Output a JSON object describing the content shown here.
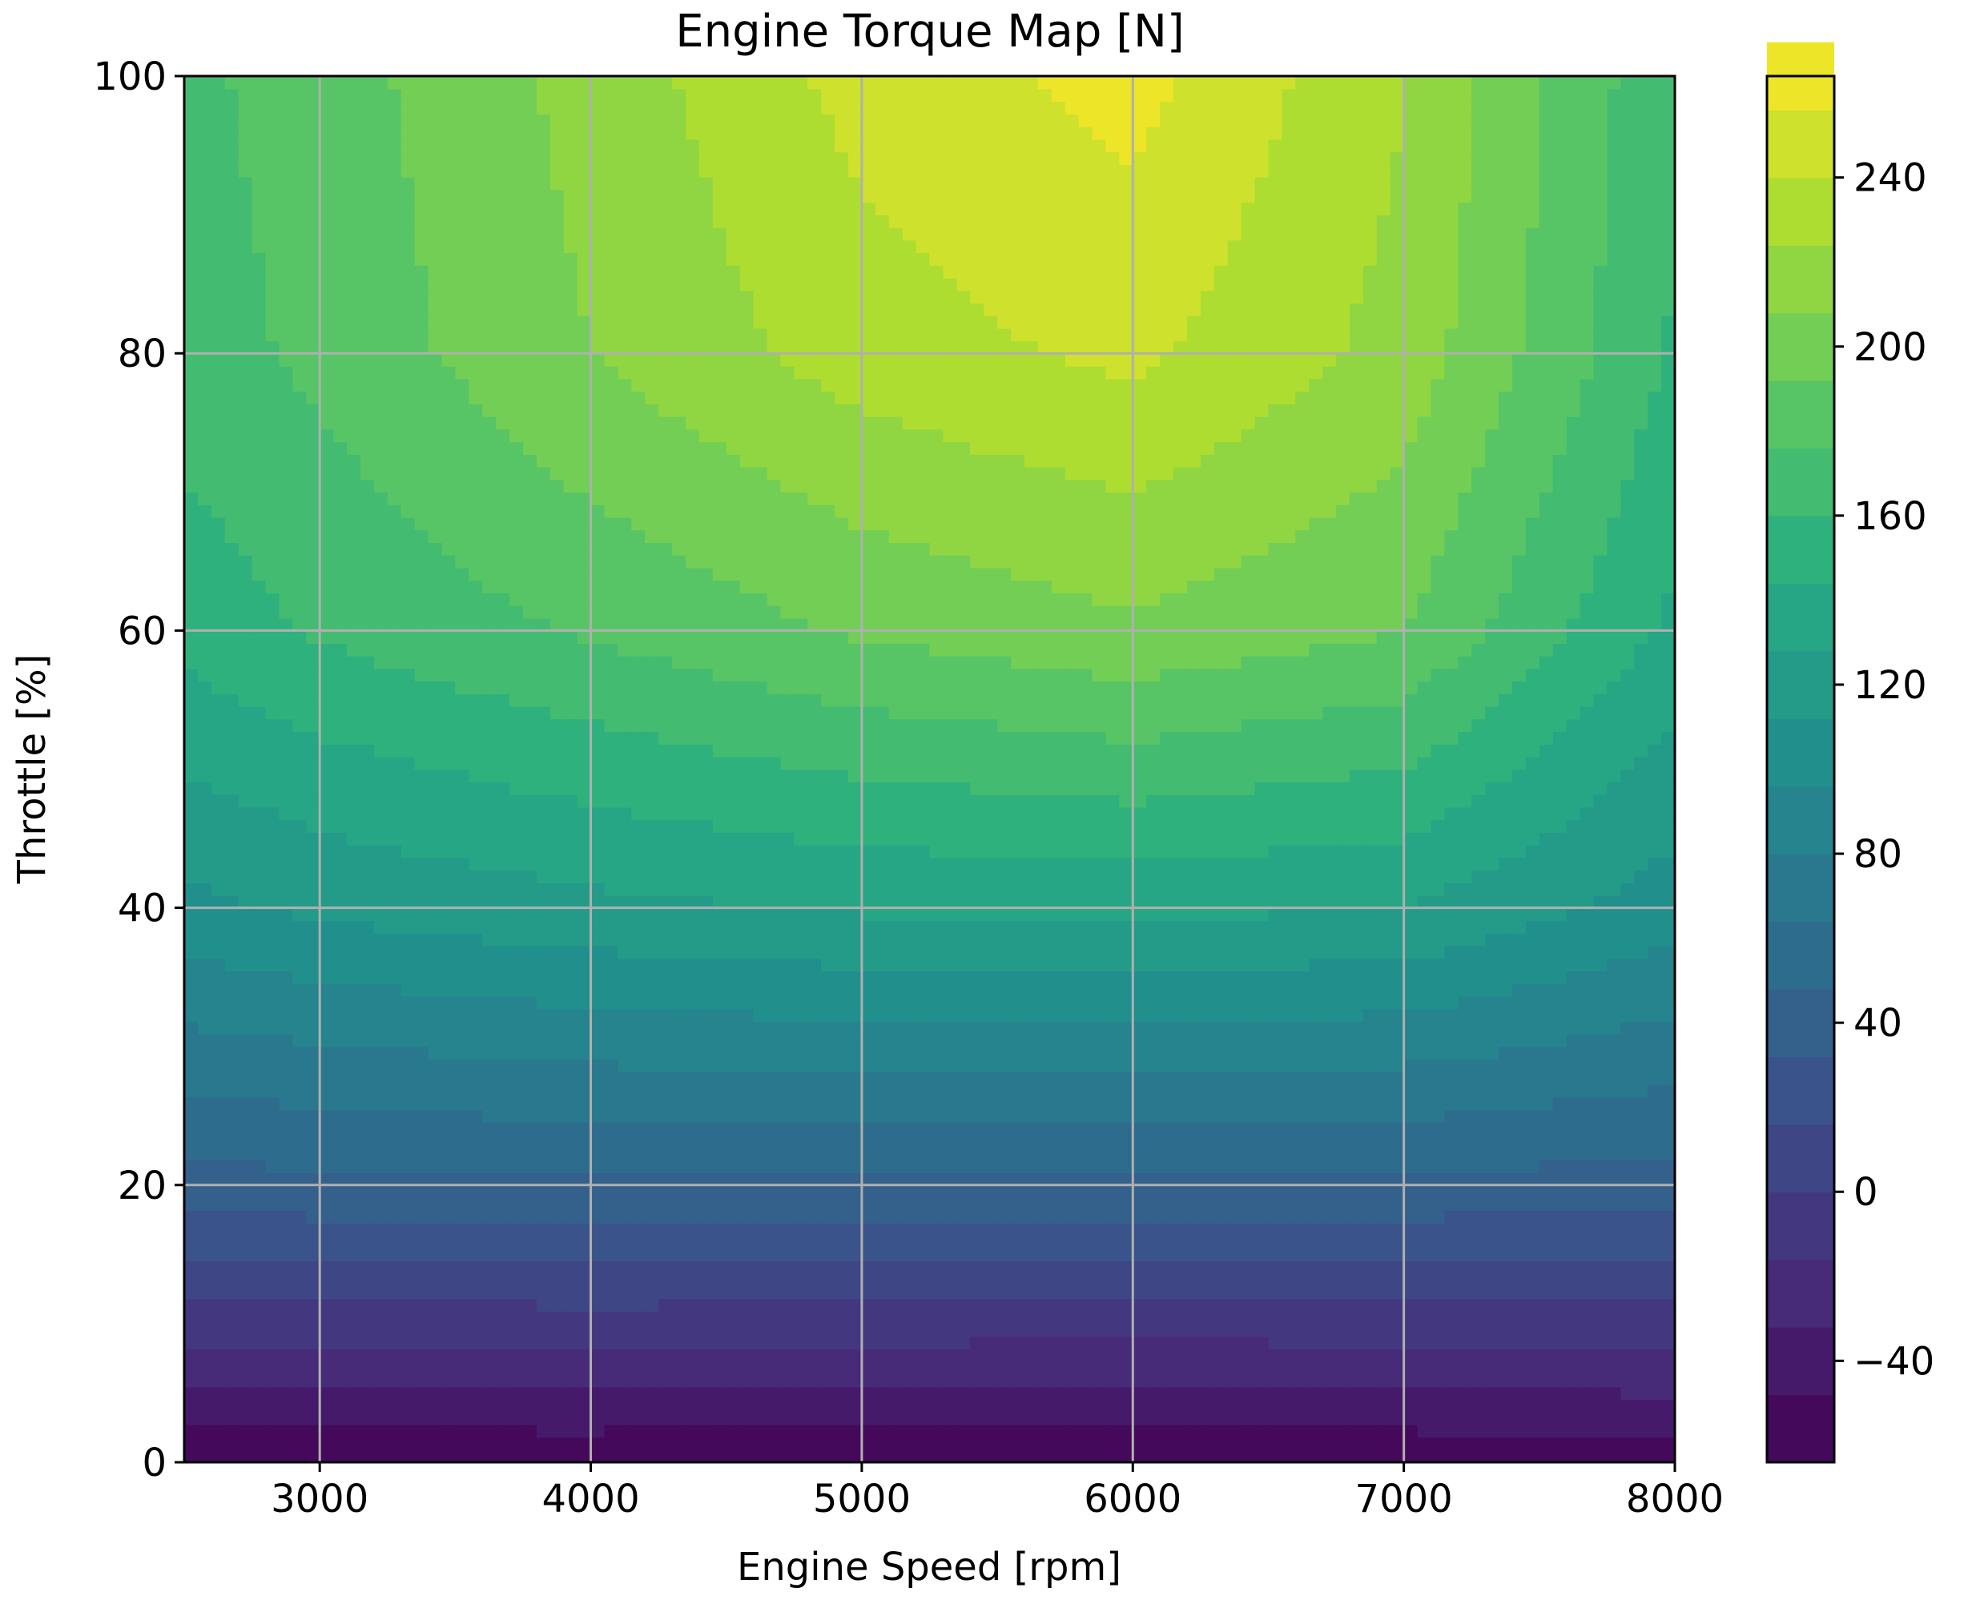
{
  "chart_data": {
    "type": "heatmap",
    "subtype": "filled-contour",
    "title": "Engine Torque Map [N]",
    "xlabel": "Engine Speed [rpm]",
    "ylabel": "Throttle [%]",
    "xlim": [
      2500,
      8000
    ],
    "ylim": [
      0,
      100
    ],
    "xticks": [
      3000,
      4000,
      5000,
      6000,
      7000,
      8000
    ],
    "xtick_labels": [
      "3000",
      "4000",
      "5000",
      "6000",
      "7000",
      "8000"
    ],
    "yticks": [
      0,
      20,
      40,
      60,
      80,
      100
    ],
    "ytick_labels": [
      "0",
      "20",
      "40",
      "60",
      "80",
      "100"
    ],
    "grid": true,
    "colormap": "viridis",
    "colorbar": {
      "range": [
        -64,
        264
      ],
      "ticks": [
        -40,
        0,
        40,
        80,
        120,
        160,
        200,
        240
      ],
      "tick_labels": [
        "−40",
        "0",
        "40",
        "80",
        "120",
        "160",
        "200",
        "240"
      ],
      "band_step": 16
    },
    "peak": {
      "x": 5900,
      "y": 100,
      "value": 262
    },
    "grid_values": {
      "x": [
        2500,
        3000,
        4000,
        5000,
        6000,
        7000,
        8000
      ],
      "y": [
        0,
        20,
        40,
        60,
        80,
        100
      ],
      "z": [
        [
          -60,
          -60,
          -60,
          -62,
          -64,
          -60,
          -56
        ],
        [
          42,
          44,
          46,
          46,
          45,
          44,
          42
        ],
        [
          108,
          115,
          124,
          130,
          132,
          128,
          104
        ],
        [
          150,
          162,
          178,
          194,
          205,
          192,
          140
        ],
        [
          168,
          180,
          208,
          232,
          244,
          218,
          158
        ],
        [
          172,
          184,
          214,
          246,
          262,
          225,
          162
        ]
      ]
    }
  }
}
